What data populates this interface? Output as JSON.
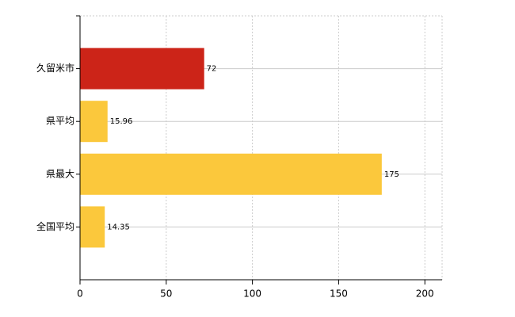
{
  "chart_data": {
    "type": "bar",
    "orientation": "horizontal",
    "categories": [
      "久留米市",
      "県平均",
      "県最大",
      "全国平均"
    ],
    "values": [
      72,
      15.96,
      175,
      14.35
    ],
    "colors": [
      "#cc2418",
      "#fbc83c",
      "#fbc83c",
      "#fbc83c"
    ],
    "xlim": [
      0,
      210
    ],
    "xticks": [
      0,
      50,
      100,
      150,
      200
    ],
    "grid": true
  }
}
